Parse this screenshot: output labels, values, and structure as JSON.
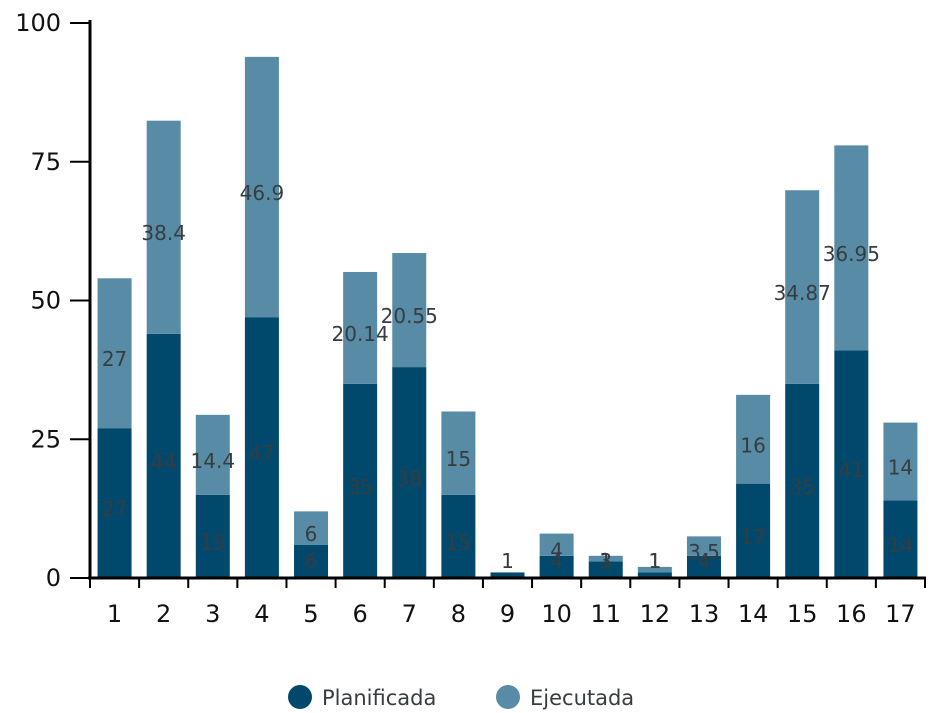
{
  "chart_data": {
    "type": "bar",
    "stacked": true,
    "categories": [
      "1",
      "2",
      "3",
      "4",
      "5",
      "6",
      "7",
      "8",
      "9",
      "10",
      "11",
      "12",
      "13",
      "14",
      "15",
      "16",
      "17"
    ],
    "series": [
      {
        "name": "Planificada",
        "color": "#00496d",
        "values": [
          27,
          44,
          15,
          47,
          6,
          35,
          38,
          15,
          1,
          4,
          3,
          1,
          4,
          17,
          35,
          41,
          14
        ]
      },
      {
        "name": "Ejecutada",
        "color": "#588ba6",
        "values": [
          27,
          38.4,
          14.4,
          46.9,
          6,
          20.14,
          20.55,
          15,
          0,
          4,
          1,
          1,
          3.5,
          16,
          34.87,
          36.95,
          14
        ]
      }
    ],
    "ylim": [
      0,
      100
    ],
    "yticks": [
      0,
      25,
      50,
      75,
      100
    ],
    "grid": false,
    "data_labels": true,
    "legend": "bottom-center"
  }
}
